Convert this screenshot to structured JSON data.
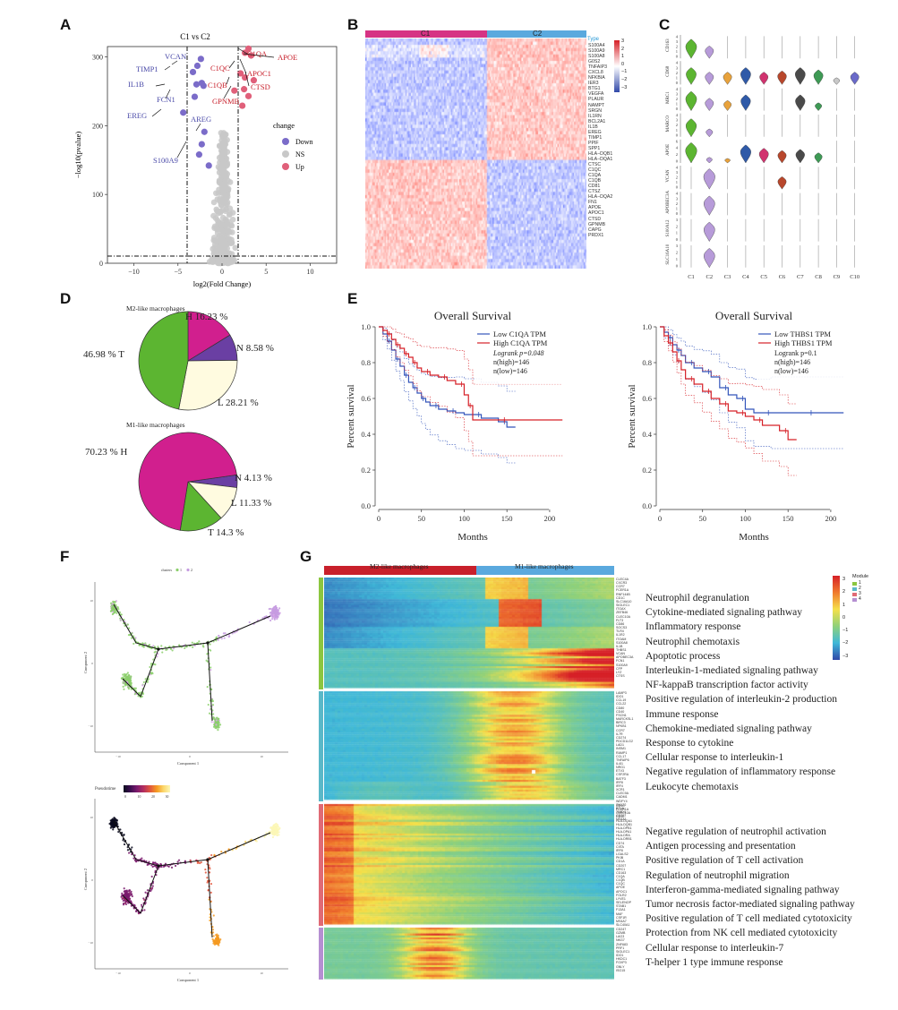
{
  "panels": {
    "A": "A",
    "B": "B",
    "C": "C",
    "D": "D",
    "E": "E",
    "F": "F",
    "G": "G"
  },
  "colors": {
    "down": "#7b6cc9",
    "ns": "#c8c8c8",
    "up": "#e0607a",
    "c1bar": "#d63384",
    "c2bar": "#5aa9de",
    "pie_H": "#d11f8e",
    "pie_N": "#6a3fa3",
    "pie_L": "#fffbe0",
    "pie_T": "#5cb531",
    "km_low": "#3355bb",
    "km_high": "#d62027"
  },
  "volcano": {
    "title": "C1 vs C2",
    "xlabel": "log2(Fold Change)",
    "ylabel": "−log10(pvalue)",
    "xticks": [
      "−10",
      "−5",
      "0",
      "5",
      "10"
    ],
    "yticks": [
      "0",
      "100",
      "200",
      "300"
    ],
    "legend_title": "change",
    "legend": [
      {
        "label": "Down"
      },
      {
        "label": "NS"
      },
      {
        "label": "Up"
      }
    ],
    "down_genes": [
      "TIMP1",
      "VCAN",
      "IL1B",
      "FCN1",
      "EREG",
      "AREG",
      "S100A9"
    ],
    "up_genes": [
      "C1QA",
      "APOE",
      "C1QC",
      "APOC1",
      "C1QB",
      "CTSD",
      "GPNMB"
    ]
  },
  "heatmapB": {
    "c1": "C1",
    "c2": "C2",
    "type_label": "Type",
    "scale": [
      "3",
      "2",
      "1",
      "0",
      "−1",
      "−2",
      "−3"
    ],
    "genes": [
      "S100A4",
      "S100A9",
      "S100A8",
      "G0S2",
      "TNFAIP3",
      "CXCL8",
      "NFKBIA",
      "IER3",
      "BTG1",
      "VEGFA",
      "PLAUR",
      "NAMPT",
      "SRGN",
      "IL1RN",
      "BCL2A1",
      "IL1B",
      "EREG",
      "TIMP1",
      "PPIF",
      "SPP1",
      "HLA−DQB1",
      "HLA−DQA1",
      "CTSC",
      "C1QC",
      "C1QA",
      "C1QB",
      "CD81",
      "CTSZ",
      "HLA−DQA2",
      "FN1",
      "APOE",
      "APOC1",
      "CTSD",
      "GPNMB",
      "CAPG",
      "PRDX1"
    ]
  },
  "violinC": {
    "genes": [
      "CD163",
      "CD68",
      "MRC1",
      "MARCO",
      "APOE",
      "VCAN",
      "APOBEC3A",
      "S100A12",
      "SLC16A10"
    ],
    "clusters": [
      "C1",
      "C2",
      "C3",
      "C4",
      "C5",
      "C6",
      "C7",
      "C8",
      "C9",
      "C10"
    ],
    "ticks": {
      "CD163": [
        "4",
        "3",
        "2",
        "1",
        "0"
      ],
      "CD68": [
        "4",
        "3",
        "2",
        "1",
        "0"
      ],
      "MRC1": [
        "4",
        "3",
        "2",
        "1",
        "0"
      ],
      "MARCO": [
        "4",
        "3",
        "2",
        "1",
        "0"
      ],
      "APOE": [
        "6",
        "4",
        "2",
        "0"
      ],
      "VCAN": [
        "4",
        "3",
        "2",
        "1",
        "0"
      ],
      "APOBEC3A": [
        "4",
        "3",
        "2",
        "1",
        "0"
      ],
      "S100A12": [
        "3",
        "2",
        "1",
        "0"
      ],
      "SLC16A10": [
        "3",
        "2",
        "1",
        "0"
      ]
    }
  },
  "pies": {
    "m2": {
      "title": "M2-like macrophages",
      "labels": {
        "H": "H 16.23 %",
        "N": "N 8.58 %",
        "L": "L  28.21 %",
        "T": "46.98 % T"
      },
      "values": {
        "H": 16.23,
        "N": 8.58,
        "L": 28.21,
        "T": 46.98
      }
    },
    "m1": {
      "title": "M1-like macrophages",
      "labels": {
        "H": "70.23 % H",
        "N": "N 4.13 %",
        "L": "L  11.33 %",
        "T": "T 14.3 %"
      },
      "values": {
        "H": 70.23,
        "N": 4.13,
        "L": 11.33,
        "T": 14.3
      }
    }
  },
  "km": [
    {
      "title": "Overall Survival",
      "legend": [
        "Low C1QA TPM",
        "High C1QA TPM"
      ],
      "stats": [
        "Logrank p=0.048",
        "n(high)=146",
        "n(low)=146"
      ],
      "xlabel": "Months",
      "ylabel": "Percent survival",
      "xticks": [
        "0",
        "50",
        "100",
        "150",
        "200"
      ],
      "yticks": [
        "0.0",
        "0.2",
        "0.4",
        "0.6",
        "0.8",
        "1.0"
      ]
    },
    {
      "title": "Overall Survival",
      "legend": [
        "Low THBS1 TPM",
        "High THBS1 TPM"
      ],
      "stats": [
        "Logrank p=0.1",
        "n(high)=146",
        "n(low)=146"
      ],
      "xlabel": "Months",
      "ylabel": "Percent survival",
      "xticks": [
        "0",
        "50",
        "100",
        "150",
        "200"
      ],
      "yticks": [
        "0.0",
        "0.2",
        "0.4",
        "0.6",
        "0.8",
        "1.0"
      ]
    }
  ],
  "trajectory": {
    "legend_top": "clusters",
    "legend_top_items": [
      "1",
      "2"
    ],
    "xlabel": "Component 1",
    "ylabel": "Component 2",
    "legend_bottom": "Pseudotime",
    "pt_ticks": [
      "0",
      "10",
      "20",
      "30"
    ],
    "xticks": [
      "−10",
      "0",
      "10"
    ],
    "yticks_top": [
      "10",
      "0",
      "−10"
    ],
    "yticks_bottom": [
      "10",
      "0",
      "−10"
    ]
  },
  "heatmapG": {
    "group1": "M2-like macrophages",
    "group2": "M1-like macrophages",
    "module_title": "Module",
    "modules": [
      "1",
      "2",
      "3",
      "4"
    ],
    "scale": [
      "3",
      "2",
      "1",
      "0",
      "−1",
      "−2",
      "−3"
    ],
    "genes_m1": [
      "CLEC4A",
      "CXCR3",
      "CCR7",
      "FCER1A",
      "RNF144B",
      "CD1C",
      "SLC16A10",
      "SIGLEC1",
      "ITGAX",
      "ZBTB46",
      "CLEC10A",
      "FLT3",
      "CD86",
      "SOCS3",
      "TLR4",
      "IL1R2",
      "ITGAM",
      "S100A8",
      "IL1B",
      "THBS1",
      "VCAN",
      "APOBEC3A",
      "FCN1",
      "S100A9",
      "CFP",
      "LYZ",
      "CTSS"
    ],
    "genes_m2": [
      "LAMP3",
      "IDO1",
      "CCL19",
      "CCL22",
      "CD80",
      "CD40",
      "FSCN1",
      "MARCKSL1",
      "BIRC3",
      "NFKB1",
      "CCR7",
      "IL7R",
      "CD274",
      "PDCD1LG2",
      "LAD1",
      "INSM1",
      "RAMP1",
      "CCL17",
      "TNFAIP6",
      "IL4I1",
      "NRG1",
      "ETV3",
      "CSF2RA",
      "BATF3",
      "IRF8",
      "IRF4",
      "XCR1",
      "CLEC9A",
      "CADM1",
      "WDFY4",
      "SNX22",
      "BTLA",
      "TIMD4",
      "CD207",
      "MS4A1"
    ],
    "genes_m3": [
      "CD1C",
      "FCER1A",
      "CLEC10A",
      "CD1E",
      "HLA-DQA1",
      "HLA-DQB1",
      "HLA-DPB1",
      "HLA-DPA1",
      "HLA-DRA",
      "HLA-DRB1",
      "CD74",
      "CIITA",
      "IRF8",
      "LGALS2",
      "PKIB",
      "CD1A",
      "CD207",
      "MRC1",
      "CD163",
      "C1QA",
      "C1QB",
      "C1QC",
      "APOE",
      "APOC1",
      "FOLR2",
      "LYVE1",
      "SELENOP",
      "STAB1",
      "F13A1",
      "MAF",
      "CSF1R",
      "MS4A7",
      "SLC40A1"
    ],
    "genes_m4": [
      "CD247",
      "GZMB",
      "LAG3",
      "NKG7",
      "ZNF683",
      "PRF1",
      "SIGLEC1",
      "IDO1",
      "HKDC1",
      "FOXP3",
      "GNLY",
      "ISG15"
    ],
    "terms_top": [
      "Neutrophil degranulation",
      "Cytokine-mediated signaling pathway",
      "Inflammatory response",
      "Neutrophil chemotaxis",
      "Apoptotic process",
      "Interleukin-1-mediated signaling pathway",
      "NF-kappaB transcription factor activity",
      "Positive regulation of interleukin-2 production",
      "Immune response",
      "Chemokine-mediated signaling pathway",
      "Response to cytokine",
      "Cellular response to interleukin-1",
      "Negative regulation of inflammatory response",
      "Leukocyte chemotaxis"
    ],
    "terms_bottom": [
      "Negative regulation of neutrophil activation",
      "Antigen processing and presentation",
      "Positive regulation of T cell activation",
      "Regulation of neutrophil migration",
      "Interferon-gamma-mediated signaling pathway",
      "Tumor necrosis factor-mediated signaling pathway",
      "Positive regulation of T cell mediated cytotoxicity",
      "Protection from NK cell mediated cytotoxicity",
      "Cellular response to interleukin-7",
      "T-helper 1 type immune response"
    ]
  },
  "chart_data": [
    {
      "type": "scatter",
      "title": "C1 vs C2",
      "xlabel": "log2(Fold Change)",
      "ylabel": "−log10(pvalue)",
      "xlim": [
        -13,
        13
      ],
      "ylim": [
        0,
        315
      ],
      "series": [
        {
          "name": "Down",
          "points": [
            [
              -2.4,
              297
            ],
            [
              -2.8,
              287
            ],
            [
              -3.3,
              278
            ],
            [
              -2.9,
              260
            ],
            [
              -2.1,
              258
            ],
            [
              -2.3,
              262
            ],
            [
              -4.4,
              219
            ],
            [
              -3.1,
              242
            ],
            [
              -2.0,
              191
            ],
            [
              -2.3,
              173
            ],
            [
              -2.6,
              158
            ],
            [
              -1.5,
              142
            ]
          ]
        },
        {
          "name": "Up",
          "points": [
            [
              3.0,
              312
            ],
            [
              2.6,
              306
            ],
            [
              3.3,
              302
            ],
            [
              2.1,
              276
            ],
            [
              2.6,
              270
            ],
            [
              3.6,
              266
            ],
            [
              2.5,
              253
            ],
            [
              3.0,
              243
            ],
            [
              1.4,
              251
            ],
            [
              2.3,
              229
            ]
          ]
        }
      ]
    },
    {
      "type": "pie",
      "title": "M2-like macrophages",
      "labels": [
        "H",
        "N",
        "L",
        "T"
      ],
      "values": [
        16.23,
        8.58,
        28.21,
        46.98
      ]
    },
    {
      "type": "pie",
      "title": "M1-like macrophages",
      "labels": [
        "H",
        "N",
        "L",
        "T"
      ],
      "values": [
        70.23,
        4.13,
        11.33,
        14.3
      ]
    },
    {
      "type": "line",
      "title": "Overall Survival",
      "xlabel": "Months",
      "ylabel": "Percent survival",
      "xlim": [
        0,
        220
      ],
      "ylim": [
        0,
        1
      ],
      "series": [
        {
          "name": "Low C1QA TPM",
          "x": [
            0,
            5,
            10,
            15,
            20,
            25,
            30,
            35,
            40,
            45,
            50,
            55,
            60,
            70,
            80,
            90,
            100,
            120,
            140,
            150,
            160
          ],
          "y": [
            1.0,
            0.96,
            0.92,
            0.87,
            0.82,
            0.78,
            0.73,
            0.69,
            0.66,
            0.63,
            0.6,
            0.58,
            0.56,
            0.54,
            0.53,
            0.52,
            0.51,
            0.49,
            0.47,
            0.44,
            0.44
          ]
        },
        {
          "name": "High C1QA TPM",
          "x": [
            0,
            5,
            10,
            15,
            20,
            25,
            30,
            35,
            40,
            45,
            50,
            60,
            70,
            80,
            90,
            100,
            105,
            110,
            130,
            150,
            215
          ],
          "y": [
            1.0,
            0.98,
            0.96,
            0.93,
            0.9,
            0.88,
            0.85,
            0.83,
            0.8,
            0.77,
            0.75,
            0.73,
            0.72,
            0.7,
            0.68,
            0.62,
            0.56,
            0.48,
            0.48,
            0.48,
            0.48
          ]
        }
      ]
    },
    {
      "type": "line",
      "title": "Overall Survival",
      "xlabel": "Months",
      "ylabel": "Percent survival",
      "xlim": [
        0,
        220
      ],
      "ylim": [
        0,
        1
      ],
      "series": [
        {
          "name": "Low THBS1 TPM",
          "x": [
            0,
            5,
            10,
            15,
            20,
            25,
            30,
            40,
            50,
            60,
            70,
            80,
            90,
            100,
            110,
            130,
            150,
            180,
            215
          ],
          "y": [
            1.0,
            0.97,
            0.94,
            0.9,
            0.87,
            0.84,
            0.8,
            0.77,
            0.75,
            0.72,
            0.66,
            0.62,
            0.6,
            0.54,
            0.52,
            0.52,
            0.52,
            0.52,
            0.52
          ]
        },
        {
          "name": "High THBS1 TPM",
          "x": [
            0,
            5,
            10,
            15,
            20,
            25,
            30,
            40,
            50,
            60,
            70,
            80,
            90,
            100,
            110,
            120,
            140,
            150,
            160
          ],
          "y": [
            1.0,
            0.95,
            0.91,
            0.86,
            0.81,
            0.76,
            0.71,
            0.68,
            0.64,
            0.6,
            0.57,
            0.53,
            0.52,
            0.5,
            0.48,
            0.45,
            0.42,
            0.37,
            0.37
          ]
        }
      ]
    }
  ]
}
